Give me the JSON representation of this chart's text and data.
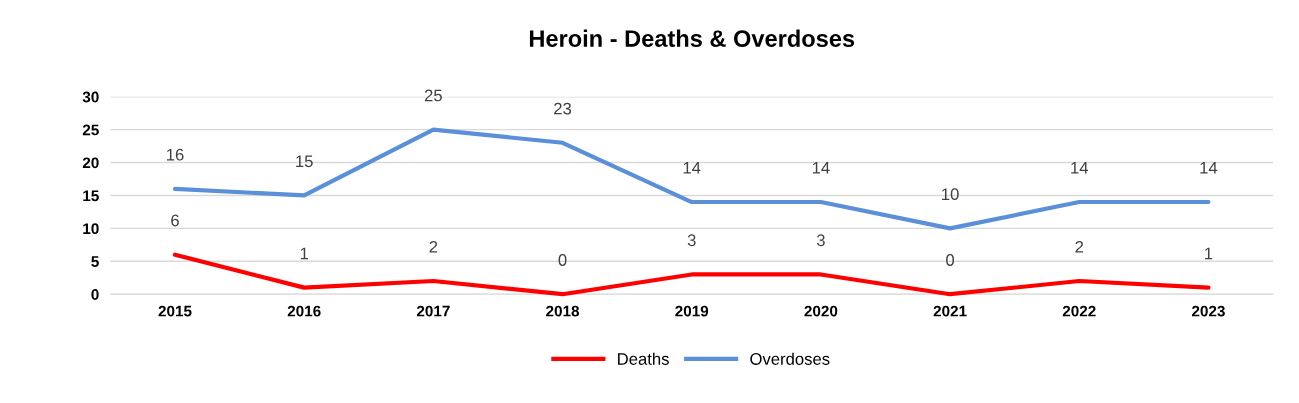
{
  "chart_data": {
    "type": "line",
    "title": "Heroin - Deaths & Overdoses",
    "categories": [
      "2015",
      "2016",
      "2017",
      "2018",
      "2019",
      "2020",
      "2021",
      "2022",
      "2023"
    ],
    "series": [
      {
        "name": "Deaths",
        "color": "#ff0000",
        "values": [
          6,
          1,
          2,
          0,
          3,
          3,
          0,
          2,
          1
        ]
      },
      {
        "name": "Overdoses",
        "color": "#5b8fd7",
        "values": [
          16,
          15,
          25,
          23,
          14,
          14,
          10,
          14,
          14
        ]
      }
    ],
    "ylim": [
      0,
      30
    ],
    "yticks": [
      0,
      5,
      10,
      15,
      20,
      25,
      30
    ],
    "grid": "y",
    "legend": "bottom",
    "data_labels": true,
    "marker": "none",
    "line_style": "solid"
  }
}
